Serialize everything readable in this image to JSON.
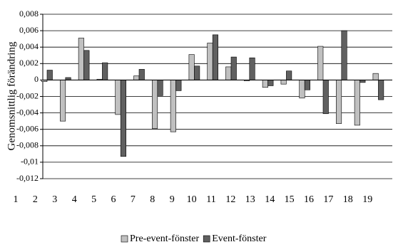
{
  "chart_data": {
    "type": "bar",
    "y_label": "Genomsnittlig förändring",
    "categories": [
      "1",
      "2",
      "3",
      "4",
      "5",
      "6",
      "7",
      "8",
      "9",
      "10",
      "11",
      "12",
      "13",
      "14",
      "15",
      "16",
      "17",
      "18",
      "19"
    ],
    "series": [
      {
        "name": "Pre-event-fönster",
        "color": "#c0c0c0",
        "values": [
          -0.0002,
          -0.005,
          0.0051,
          0.0001,
          -0.0042,
          0.0005,
          -0.0059,
          -0.0063,
          0.0031,
          0.0045,
          0.0016,
          -0.0001,
          -0.0009,
          -0.0005,
          -0.0022,
          0.0041,
          -0.0053,
          -0.0055,
          0.0008
        ]
      },
      {
        "name": "Event-fönster",
        "color": "#606060",
        "values": [
          0.0012,
          0.0003,
          0.0036,
          0.0021,
          -0.0093,
          0.0013,
          -0.0019,
          -0.0013,
          0.0017,
          0.0055,
          0.0028,
          0.0027,
          -0.0007,
          0.0011,
          -0.0012,
          -0.0041,
          0.006,
          -0.0003,
          -0.0024
        ]
      }
    ],
    "ylim": [
      -0.012,
      0.008
    ],
    "yticks": [
      {
        "value": 0.008,
        "label": "0,008"
      },
      {
        "value": 0.006,
        "label": "0,006"
      },
      {
        "value": 0.004,
        "label": "0,004"
      },
      {
        "value": 0.002,
        "label": "0,002"
      },
      0,
      {
        "value": -0.002,
        "label": "-0,002"
      },
      {
        "value": -0.004,
        "label": "-0,004"
      },
      {
        "value": -0.006,
        "label": "-0,006"
      },
      {
        "value": -0.008,
        "label": "-0,008"
      },
      {
        "value": -0.01,
        "label": "-0,01"
      },
      {
        "value": -0.012,
        "label": "-0,012"
      }
    ],
    "grid": true,
    "legend": "bottom"
  }
}
